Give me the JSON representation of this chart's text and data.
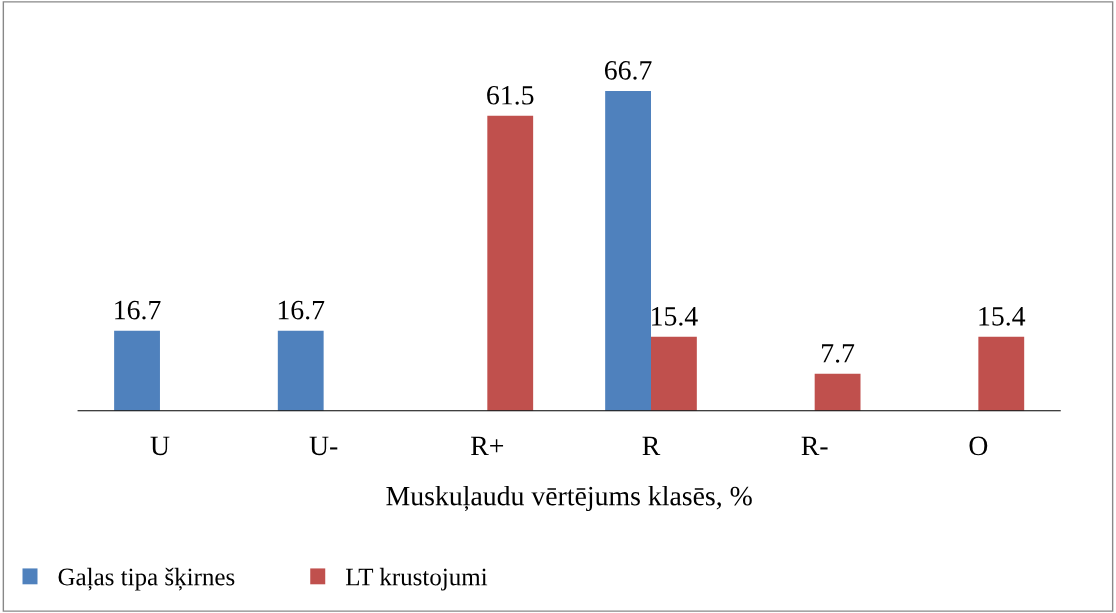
{
  "chart_data": {
    "type": "bar",
    "xlabel": "Muskuļaudu vērtējums klasēs, %",
    "categories": [
      "U",
      "U-",
      "R+",
      "R",
      "R-",
      "O"
    ],
    "series": [
      {
        "name": "Gaļas tipa šķirnes",
        "color": "#4f81bd",
        "values": [
          16.7,
          16.7,
          null,
          66.7,
          null,
          null
        ]
      },
      {
        "name": "LT krustojumi",
        "color": "#c0504d",
        "values": [
          null,
          null,
          61.5,
          15.4,
          7.7,
          15.4
        ]
      }
    ],
    "data_labels": true,
    "legend": "bottom left",
    "grid": false
  }
}
